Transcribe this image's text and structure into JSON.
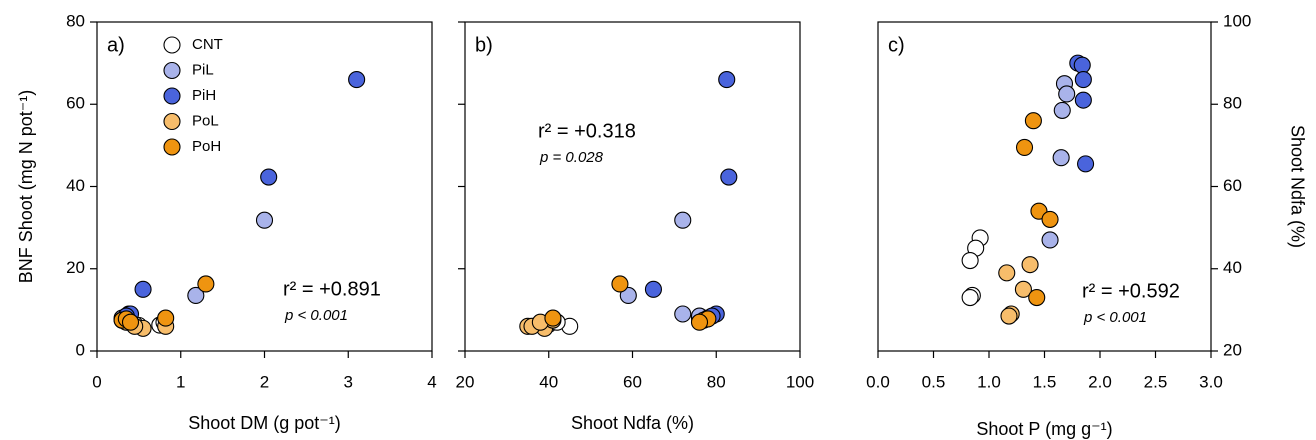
{
  "chart_data": [
    {
      "type": "scatter",
      "panel_label": "a)",
      "x_label": "Shoot DM (g pot⁻¹)",
      "y_label": "BNF Shoot (mg N pot⁻¹)",
      "annotations": [
        "r² = +0.891",
        "p < 0.001"
      ],
      "xlim": [
        0,
        4
      ],
      "xticks": [
        0,
        1,
        2,
        3,
        4
      ],
      "ylim": [
        0,
        80
      ],
      "yticks": [
        0,
        20,
        40,
        60,
        80
      ],
      "y_axis_side": "left",
      "show_ytick_labels": true,
      "legend": "upper left",
      "series": [
        {
          "name": "CNT",
          "color": "#ffffff",
          "x": [
            0.75,
            0.5,
            0.35,
            0.8,
            0.45
          ],
          "values": [
            6.3,
            6.2,
            8,
            7,
            6.5
          ]
        },
        {
          "name": "PiL",
          "color": "#a9b3ea",
          "x": [
            2.0,
            1.18,
            0.38,
            0.35,
            0.3
          ],
          "values": [
            31.8,
            13.5,
            9,
            8.5,
            8
          ]
        },
        {
          "name": "PiH",
          "color": "#4a64dc",
          "x": [
            3.1,
            2.05,
            0.55,
            0.4,
            0.35
          ],
          "values": [
            66,
            42.3,
            15,
            9,
            8.5
          ]
        },
        {
          "name": "PoL",
          "color": "#f7bd6b",
          "x": [
            0.55,
            0.82,
            0.3,
            0.45,
            0.35
          ],
          "values": [
            5.5,
            6,
            7.5,
            6,
            7
          ]
        },
        {
          "name": "PoH",
          "color": "#ef9410",
          "x": [
            1.3,
            0.3,
            0.82,
            0.35,
            0.4
          ],
          "values": [
            16.3,
            7.5,
            8,
            7.8,
            7
          ]
        }
      ]
    },
    {
      "type": "scatter",
      "panel_label": "b)",
      "x_label": "Shoot Ndfa (%)",
      "annotations": [
        "r² = +0.318",
        "p = 0.028"
      ],
      "xlim": [
        20,
        100
      ],
      "xticks": [
        20,
        40,
        60,
        80,
        100
      ],
      "ylim": [
        0,
        80
      ],
      "yticks": [
        0,
        20,
        40,
        60,
        80
      ],
      "y_axis_side": "left",
      "show_ytick_labels": false,
      "series": [
        {
          "name": "CNT",
          "color": "#ffffff",
          "x": [
            45,
            40,
            76,
            78,
            42
          ],
          "values": [
            6,
            6.5,
            8,
            8,
            7
          ]
        },
        {
          "name": "PiL",
          "color": "#a9b3ea",
          "x": [
            72,
            59,
            72,
            76,
            78
          ],
          "values": [
            31.8,
            13.5,
            9,
            8.5,
            8
          ]
        },
        {
          "name": "PiH",
          "color": "#4a64dc",
          "x": [
            82.5,
            83,
            65,
            80,
            79
          ],
          "values": [
            66,
            42.3,
            15,
            9,
            8.5
          ]
        },
        {
          "name": "PoL",
          "color": "#f7bd6b",
          "x": [
            35,
            39,
            41,
            36,
            38
          ],
          "values": [
            6,
            5.5,
            7.5,
            6,
            7
          ]
        },
        {
          "name": "PoH",
          "color": "#ef9410",
          "x": [
            57,
            41,
            77,
            78,
            76
          ],
          "values": [
            16.3,
            8,
            7.5,
            7.8,
            7
          ]
        }
      ]
    },
    {
      "type": "scatter",
      "panel_label": "c)",
      "x_label": "Shoot P (mg g⁻¹)",
      "y_label": "Shoot Ndfa (%)",
      "annotations": [
        "r² = +0.592",
        "p < 0.001"
      ],
      "xlim": [
        0,
        3
      ],
      "xticks": [
        {
          "value": 0,
          "label": "0.0"
        },
        {
          "value": 0.5,
          "label": "0.5"
        },
        {
          "value": 1,
          "label": "1.0"
        },
        {
          "value": 1.5,
          "label": "1.5"
        },
        {
          "value": 2,
          "label": "2.0"
        },
        {
          "value": 2.5,
          "label": "2.5"
        },
        {
          "value": 3,
          "label": "3.0"
        }
      ],
      "ylim": [
        20,
        100
      ],
      "yticks": [
        20,
        40,
        60,
        80,
        100
      ],
      "y_axis_side": "right",
      "show_ytick_labels": true,
      "series": [
        {
          "name": "CNT",
          "color": "#ffffff",
          "x": [
            0.92,
            0.88,
            0.83,
            0.85,
            0.83
          ],
          "values": [
            47.5,
            45,
            42,
            33.5,
            33
          ]
        },
        {
          "name": "PiL",
          "color": "#a9b3ea",
          "x": [
            1.68,
            1.7,
            1.66,
            1.65,
            1.55
          ],
          "values": [
            85,
            82.5,
            78.5,
            67,
            47
          ]
        },
        {
          "name": "PiH",
          "color": "#4a64dc",
          "x": [
            1.8,
            1.84,
            1.85,
            1.85,
            1.87
          ],
          "values": [
            90,
            89.5,
            86,
            81,
            65.5
          ]
        },
        {
          "name": "PoL",
          "color": "#f7bd6b",
          "x": [
            1.16,
            1.37,
            1.31,
            1.2,
            1.18
          ],
          "values": [
            39,
            41,
            35,
            29,
            28.5
          ]
        },
        {
          "name": "PoH",
          "color": "#ef9410",
          "x": [
            1.4,
            1.32,
            1.45,
            1.55,
            1.43
          ],
          "values": [
            76,
            69.5,
            54,
            52,
            33
          ]
        }
      ]
    }
  ]
}
